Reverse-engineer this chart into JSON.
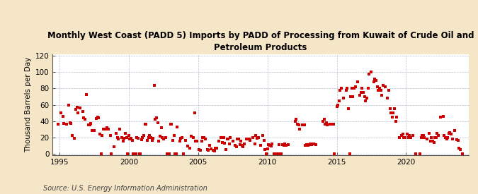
{
  "title": "Monthly West Coast (PADD 5) Imports by PADD of Processing from Kuwait of Crude Oil and\nPetroleum Products",
  "ylabel": "Thousand Barrels per Day",
  "source": "Source: U.S. Energy Information Administration",
  "background_color": "#f5e6c8",
  "plot_bg_color": "#ffffff",
  "marker_color": "#cc0000",
  "marker_size": 5,
  "xlim": [
    1994.5,
    2024.5
  ],
  "ylim": [
    -2,
    122
  ],
  "yticks": [
    0,
    20,
    40,
    60,
    80,
    100,
    120
  ],
  "xticks": [
    1995,
    2000,
    2005,
    2010,
    2015,
    2020
  ],
  "grid_color": "#b0b8cc",
  "title_fontsize": 8.5,
  "tick_fontsize": 7.5,
  "ylabel_fontsize": 7.5,
  "source_fontsize": 7,
  "data": [
    [
      1994.92,
      36
    ],
    [
      1995.08,
      50
    ],
    [
      1995.25,
      46
    ],
    [
      1995.33,
      37
    ],
    [
      1995.5,
      36
    ],
    [
      1995.67,
      60
    ],
    [
      1995.75,
      38
    ],
    [
      1995.83,
      37
    ],
    [
      1995.92,
      22
    ],
    [
      1996.08,
      19
    ],
    [
      1996.17,
      54
    ],
    [
      1996.25,
      57
    ],
    [
      1996.33,
      50
    ],
    [
      1996.5,
      56
    ],
    [
      1996.67,
      52
    ],
    [
      1996.75,
      44
    ],
    [
      1996.83,
      42
    ],
    [
      1996.92,
      73
    ],
    [
      1997.08,
      35
    ],
    [
      1997.17,
      35
    ],
    [
      1997.25,
      37
    ],
    [
      1997.33,
      28
    ],
    [
      1997.5,
      28
    ],
    [
      1997.67,
      43
    ],
    [
      1997.75,
      45
    ],
    [
      1997.83,
      44
    ],
    [
      1997.92,
      24
    ],
    [
      1998.0,
      0
    ],
    [
      1998.08,
      22
    ],
    [
      1998.17,
      30
    ],
    [
      1998.25,
      30
    ],
    [
      1998.33,
      30
    ],
    [
      1998.42,
      32
    ],
    [
      1998.5,
      30
    ],
    [
      1998.67,
      22
    ],
    [
      1998.75,
      0
    ],
    [
      1998.92,
      8
    ],
    [
      1999.08,
      25
    ],
    [
      1999.17,
      20
    ],
    [
      1999.25,
      18
    ],
    [
      1999.33,
      30
    ],
    [
      1999.5,
      20
    ],
    [
      1999.58,
      15
    ],
    [
      1999.67,
      19
    ],
    [
      1999.75,
      25
    ],
    [
      1999.83,
      20
    ],
    [
      1999.92,
      0
    ],
    [
      2000.0,
      22
    ],
    [
      2000.08,
      18
    ],
    [
      2000.17,
      19
    ],
    [
      2000.25,
      16
    ],
    [
      2000.33,
      0
    ],
    [
      2000.42,
      0
    ],
    [
      2000.5,
      0
    ],
    [
      2000.58,
      20
    ],
    [
      2000.67,
      19
    ],
    [
      2000.75,
      0
    ],
    [
      2000.83,
      0
    ],
    [
      2000.92,
      17
    ],
    [
      2001.0,
      20
    ],
    [
      2001.08,
      22
    ],
    [
      2001.17,
      36
    ],
    [
      2001.25,
      36
    ],
    [
      2001.33,
      16
    ],
    [
      2001.42,
      20
    ],
    [
      2001.5,
      22
    ],
    [
      2001.58,
      20
    ],
    [
      2001.67,
      16
    ],
    [
      2001.75,
      19
    ],
    [
      2001.83,
      84
    ],
    [
      2001.92,
      42
    ],
    [
      2002.0,
      44
    ],
    [
      2002.08,
      38
    ],
    [
      2002.17,
      15
    ],
    [
      2002.25,
      21
    ],
    [
      2002.33,
      32
    ],
    [
      2002.42,
      20
    ],
    [
      2002.5,
      18
    ],
    [
      2002.67,
      20
    ],
    [
      2002.75,
      0
    ],
    [
      2002.92,
      0
    ],
    [
      2003.0,
      36
    ],
    [
      2003.08,
      36
    ],
    [
      2003.17,
      16
    ],
    [
      2003.25,
      22
    ],
    [
      2003.33,
      0
    ],
    [
      2003.42,
      0
    ],
    [
      2003.5,
      33
    ],
    [
      2003.67,
      15
    ],
    [
      2003.75,
      19
    ],
    [
      2003.83,
      20
    ],
    [
      2003.92,
      0
    ],
    [
      2004.08,
      16
    ],
    [
      2004.25,
      9
    ],
    [
      2004.42,
      7
    ],
    [
      2004.5,
      21
    ],
    [
      2004.67,
      20
    ],
    [
      2004.75,
      50
    ],
    [
      2004.83,
      15
    ],
    [
      2004.92,
      15
    ],
    [
      2005.08,
      5
    ],
    [
      2005.17,
      4
    ],
    [
      2005.25,
      15
    ],
    [
      2005.33,
      20
    ],
    [
      2005.42,
      20
    ],
    [
      2005.5,
      18
    ],
    [
      2005.67,
      5
    ],
    [
      2005.75,
      4
    ],
    [
      2005.83,
      10
    ],
    [
      2005.92,
      6
    ],
    [
      2006.08,
      4
    ],
    [
      2006.17,
      3
    ],
    [
      2006.25,
      7
    ],
    [
      2006.33,
      7
    ],
    [
      2006.5,
      15
    ],
    [
      2006.67,
      20
    ],
    [
      2006.75,
      14
    ],
    [
      2006.83,
      20
    ],
    [
      2006.92,
      13
    ],
    [
      2007.0,
      5
    ],
    [
      2007.08,
      18
    ],
    [
      2007.17,
      18
    ],
    [
      2007.25,
      12
    ],
    [
      2007.33,
      20
    ],
    [
      2007.5,
      15
    ],
    [
      2007.67,
      10
    ],
    [
      2007.75,
      8
    ],
    [
      2007.83,
      18
    ],
    [
      2007.92,
      18
    ],
    [
      2008.0,
      11
    ],
    [
      2008.08,
      15
    ],
    [
      2008.17,
      10
    ],
    [
      2008.25,
      8
    ],
    [
      2008.33,
      12
    ],
    [
      2008.5,
      18
    ],
    [
      2008.67,
      18
    ],
    [
      2008.75,
      16
    ],
    [
      2008.92,
      20
    ],
    [
      2009.08,
      12
    ],
    [
      2009.17,
      22
    ],
    [
      2009.25,
      19
    ],
    [
      2009.33,
      20
    ],
    [
      2009.5,
      10
    ],
    [
      2009.67,
      22
    ],
    [
      2009.75,
      16
    ],
    [
      2009.83,
      5
    ],
    [
      2009.92,
      0
    ],
    [
      2010.0,
      6
    ],
    [
      2010.08,
      11
    ],
    [
      2010.17,
      10
    ],
    [
      2010.25,
      9
    ],
    [
      2010.33,
      12
    ],
    [
      2010.5,
      0
    ],
    [
      2010.67,
      0
    ],
    [
      2010.75,
      0
    ],
    [
      2010.83,
      11
    ],
    [
      2010.92,
      0
    ],
    [
      2011.0,
      0
    ],
    [
      2011.08,
      11
    ],
    [
      2011.17,
      10
    ],
    [
      2011.25,
      12
    ],
    [
      2011.33,
      10
    ],
    [
      2011.5,
      11
    ],
    [
      2012.0,
      40
    ],
    [
      2012.08,
      42
    ],
    [
      2012.17,
      36
    ],
    [
      2012.25,
      35
    ],
    [
      2012.33,
      30
    ],
    [
      2012.5,
      35
    ],
    [
      2012.67,
      35
    ],
    [
      2012.75,
      10
    ],
    [
      2012.83,
      11
    ],
    [
      2012.92,
      10
    ],
    [
      2013.0,
      11
    ],
    [
      2013.08,
      12
    ],
    [
      2013.17,
      11
    ],
    [
      2013.25,
      12
    ],
    [
      2013.33,
      12
    ],
    [
      2013.5,
      11
    ],
    [
      2014.0,
      40
    ],
    [
      2014.08,
      42
    ],
    [
      2014.17,
      36
    ],
    [
      2014.25,
      38
    ],
    [
      2014.33,
      35
    ],
    [
      2014.5,
      36
    ],
    [
      2014.67,
      36
    ],
    [
      2014.75,
      36
    ],
    [
      2014.83,
      0
    ],
    [
      2015.0,
      58
    ],
    [
      2015.08,
      60
    ],
    [
      2015.17,
      65
    ],
    [
      2015.25,
      78
    ],
    [
      2015.33,
      80
    ],
    [
      2015.5,
      68
    ],
    [
      2015.67,
      78
    ],
    [
      2015.75,
      80
    ],
    [
      2015.83,
      55
    ],
    [
      2015.92,
      0
    ],
    [
      2016.0,
      70
    ],
    [
      2016.08,
      80
    ],
    [
      2016.17,
      70
    ],
    [
      2016.25,
      80
    ],
    [
      2016.33,
      82
    ],
    [
      2016.5,
      88
    ],
    [
      2016.67,
      72
    ],
    [
      2016.75,
      75
    ],
    [
      2016.83,
      80
    ],
    [
      2016.92,
      75
    ],
    [
      2017.0,
      70
    ],
    [
      2017.08,
      65
    ],
    [
      2017.17,
      68
    ],
    [
      2017.25,
      80
    ],
    [
      2017.33,
      98
    ],
    [
      2017.5,
      100
    ],
    [
      2017.67,
      88
    ],
    [
      2017.75,
      92
    ],
    [
      2017.83,
      90
    ],
    [
      2017.92,
      82
    ],
    [
      2018.0,
      78
    ],
    [
      2018.08,
      80
    ],
    [
      2018.17,
      78
    ],
    [
      2018.25,
      72
    ],
    [
      2018.33,
      84
    ],
    [
      2018.5,
      82
    ],
    [
      2018.67,
      68
    ],
    [
      2018.75,
      78
    ],
    [
      2018.83,
      55
    ],
    [
      2018.92,
      50
    ],
    [
      2019.0,
      45
    ],
    [
      2019.08,
      50
    ],
    [
      2019.17,
      55
    ],
    [
      2019.25,
      40
    ],
    [
      2019.33,
      45
    ],
    [
      2019.5,
      20
    ],
    [
      2019.67,
      22
    ],
    [
      2019.75,
      24
    ],
    [
      2019.83,
      20
    ],
    [
      2019.92,
      20
    ],
    [
      2020.08,
      24
    ],
    [
      2020.17,
      20
    ],
    [
      2020.25,
      22
    ],
    [
      2020.33,
      20
    ],
    [
      2020.5,
      22
    ],
    [
      2020.67,
      0
    ],
    [
      2021.0,
      0
    ],
    [
      2021.08,
      20
    ],
    [
      2021.17,
      22
    ],
    [
      2021.25,
      22
    ],
    [
      2021.33,
      20
    ],
    [
      2021.5,
      18
    ],
    [
      2021.67,
      25
    ],
    [
      2021.75,
      15
    ],
    [
      2021.83,
      20
    ],
    [
      2021.92,
      15
    ],
    [
      2022.0,
      14
    ],
    [
      2022.08,
      20
    ],
    [
      2022.17,
      20
    ],
    [
      2022.25,
      25
    ],
    [
      2022.33,
      22
    ],
    [
      2022.5,
      45
    ],
    [
      2022.67,
      46
    ],
    [
      2022.75,
      22
    ],
    [
      2022.83,
      20
    ],
    [
      2022.92,
      18
    ],
    [
      2023.0,
      20
    ],
    [
      2023.08,
      25
    ],
    [
      2023.17,
      26
    ],
    [
      2023.25,
      24
    ],
    [
      2023.33,
      18
    ],
    [
      2023.5,
      28
    ],
    [
      2023.67,
      17
    ],
    [
      2023.75,
      16
    ],
    [
      2023.83,
      7
    ],
    [
      2023.92,
      5
    ],
    [
      2024.08,
      0
    ]
  ]
}
